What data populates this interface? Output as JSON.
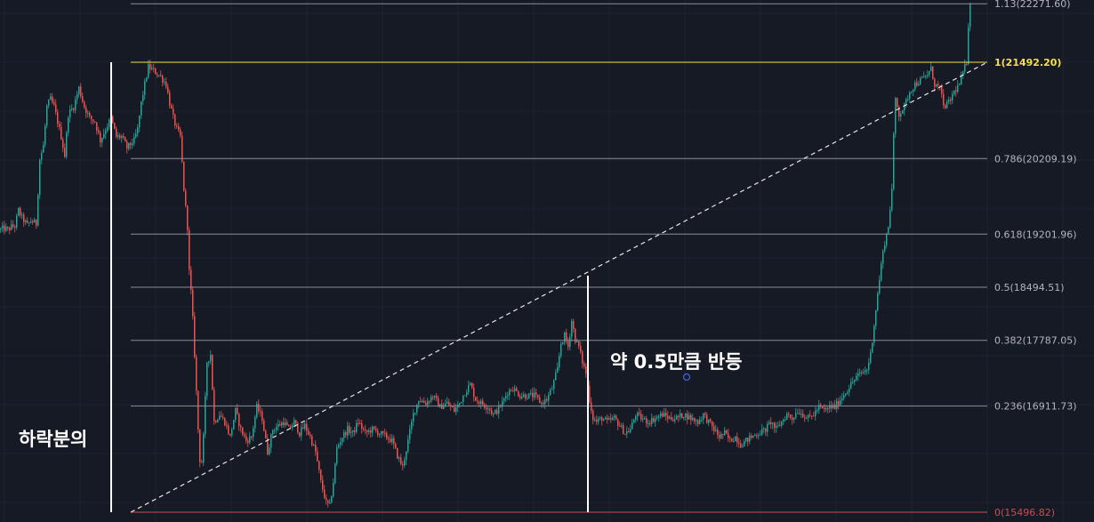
{
  "chart_data": {
    "type": "candlestick",
    "price_range": [
      15430,
      22320
    ],
    "fib_levels": [
      {
        "ratio": "0",
        "price": 15496.82,
        "label": "0(15496.82)",
        "color": "#d14a55"
      },
      {
        "ratio": "0.236",
        "price": 16911.73,
        "label": "0.236(16911.73)",
        "color": "#8a8e99"
      },
      {
        "ratio": "0.382",
        "price": 17787.05,
        "label": "0.382(17787.05)",
        "color": "#8a8e99"
      },
      {
        "ratio": "0.5",
        "price": 18494.51,
        "label": "0.5(18494.51)",
        "color": "#8a8e99"
      },
      {
        "ratio": "0.618",
        "price": 19201.96,
        "label": "0.618(19201.96)",
        "color": "#8a8e99"
      },
      {
        "ratio": "0.786",
        "price": 20209.19,
        "label": "0.786(20209.19)",
        "color": "#8a8e99"
      },
      {
        "ratio": "1",
        "price": 21492.2,
        "label": "1(21492.20)",
        "color": "#f5e04a"
      },
      {
        "ratio": "1.13",
        "price": 22271.6,
        "label": "1.13(22271.60)",
        "color": "#8a8e99"
      }
    ],
    "price_path": [
      [
        0,
        19260
      ],
      [
        3,
        19280
      ],
      [
        8,
        19260
      ],
      [
        12,
        19300
      ],
      [
        16,
        19310
      ],
      [
        20,
        19520
      ],
      [
        24,
        19420
      ],
      [
        30,
        19320
      ],
      [
        34,
        19380
      ],
      [
        40,
        19340
      ],
      [
        44,
        20200
      ],
      [
        48,
        20380
      ],
      [
        52,
        20900
      ],
      [
        56,
        21000
      ],
      [
        60,
        20900
      ],
      [
        64,
        20700
      ],
      [
        68,
        20500
      ],
      [
        72,
        20250
      ],
      [
        76,
        20800
      ],
      [
        82,
        20900
      ],
      [
        88,
        21150
      ],
      [
        94,
        20900
      ],
      [
        100,
        20750
      ],
      [
        106,
        20700
      ],
      [
        112,
        20450
      ],
      [
        118,
        20600
      ],
      [
        124,
        20750
      ],
      [
        130,
        20500
      ],
      [
        136,
        20500
      ],
      [
        142,
        20350
      ],
      [
        150,
        20450
      ],
      [
        154,
        20600
      ],
      [
        158,
        20950
      ],
      [
        162,
        21200
      ],
      [
        166,
        21430
      ],
      [
        172,
        21380
      ],
      [
        180,
        21300
      ],
      [
        186,
        21200
      ],
      [
        190,
        20950
      ],
      [
        194,
        20750
      ],
      [
        198,
        20600
      ],
      [
        202,
        20500
      ],
      [
        206,
        19800
      ],
      [
        210,
        19300
      ],
      [
        212,
        18700
      ],
      [
        215,
        18300
      ],
      [
        218,
        17600
      ],
      [
        222,
        16600
      ],
      [
        225,
        16000
      ],
      [
        228,
        16500
      ],
      [
        232,
        17500
      ],
      [
        236,
        17600
      ],
      [
        240,
        16700
      ],
      [
        246,
        16800
      ],
      [
        252,
        16700
      ],
      [
        258,
        16500
      ],
      [
        264,
        16850
      ],
      [
        270,
        16600
      ],
      [
        276,
        16450
      ],
      [
        282,
        16500
      ],
      [
        288,
        16900
      ],
      [
        294,
        16750
      ],
      [
        300,
        16300
      ],
      [
        306,
        16600
      ],
      [
        312,
        16650
      ],
      [
        318,
        16700
      ],
      [
        324,
        16600
      ],
      [
        330,
        16700
      ],
      [
        336,
        16550
      ],
      [
        342,
        16650
      ],
      [
        348,
        16500
      ],
      [
        354,
        16300
      ],
      [
        360,
        15900
      ],
      [
        366,
        15620
      ],
      [
        370,
        15580
      ],
      [
        374,
        15900
      ],
      [
        378,
        16350
      ],
      [
        384,
        16500
      ],
      [
        390,
        16600
      ],
      [
        396,
        16550
      ],
      [
        402,
        16700
      ],
      [
        410,
        16550
      ],
      [
        418,
        16600
      ],
      [
        426,
        16550
      ],
      [
        434,
        16500
      ],
      [
        440,
        16450
      ],
      [
        446,
        16250
      ],
      [
        452,
        16100
      ],
      [
        458,
        16450
      ],
      [
        464,
        16800
      ],
      [
        470,
        17000
      ],
      [
        478,
        16950
      ],
      [
        486,
        17050
      ],
      [
        494,
        16900
      ],
      [
        502,
        16950
      ],
      [
        510,
        16850
      ],
      [
        516,
        16950
      ],
      [
        522,
        17100
      ],
      [
        528,
        17200
      ],
      [
        534,
        17000
      ],
      [
        540,
        16950
      ],
      [
        548,
        16900
      ],
      [
        554,
        16800
      ],
      [
        558,
        16850
      ],
      [
        564,
        16950
      ],
      [
        570,
        17100
      ],
      [
        576,
        17150
      ],
      [
        584,
        17050
      ],
      [
        592,
        17050
      ],
      [
        600,
        17050
      ],
      [
        608,
        16950
      ],
      [
        614,
        17000
      ],
      [
        620,
        17150
      ],
      [
        626,
        17400
      ],
      [
        630,
        17750
      ],
      [
        634,
        17850
      ],
      [
        638,
        17700
      ],
      [
        642,
        18050
      ],
      [
        646,
        17800
      ],
      [
        650,
        17700
      ],
      [
        654,
        17500
      ],
      [
        658,
        17350
      ],
      [
        662,
        17000
      ],
      [
        666,
        16750
      ],
      [
        670,
        16700
      ],
      [
        676,
        16750
      ],
      [
        682,
        16700
      ],
      [
        690,
        16750
      ],
      [
        696,
        16650
      ],
      [
        702,
        16550
      ],
      [
        708,
        16600
      ],
      [
        714,
        16800
      ],
      [
        720,
        16750
      ],
      [
        728,
        16700
      ],
      [
        736,
        16750
      ],
      [
        744,
        16800
      ],
      [
        752,
        16750
      ],
      [
        760,
        16750
      ],
      [
        768,
        16800
      ],
      [
        776,
        16750
      ],
      [
        784,
        16700
      ],
      [
        790,
        16800
      ],
      [
        796,
        16700
      ],
      [
        802,
        16600
      ],
      [
        808,
        16500
      ],
      [
        814,
        16550
      ],
      [
        820,
        16450
      ],
      [
        826,
        16500
      ],
      [
        832,
        16400
      ],
      [
        838,
        16450
      ],
      [
        844,
        16500
      ],
      [
        852,
        16550
      ],
      [
        860,
        16600
      ],
      [
        866,
        16700
      ],
      [
        872,
        16600
      ],
      [
        878,
        16700
      ],
      [
        884,
        16800
      ],
      [
        890,
        16750
      ],
      [
        896,
        16850
      ],
      [
        902,
        16800
      ],
      [
        908,
        16750
      ],
      [
        914,
        16800
      ],
      [
        920,
        16900
      ],
      [
        926,
        16850
      ],
      [
        932,
        16900
      ],
      [
        938,
        16900
      ],
      [
        944,
        17000
      ],
      [
        950,
        17100
      ],
      [
        956,
        17200
      ],
      [
        962,
        17300
      ],
      [
        968,
        17350
      ],
      [
        974,
        17400
      ],
      [
        978,
        17600
      ],
      [
        982,
        18000
      ],
      [
        986,
        18400
      ],
      [
        990,
        18800
      ],
      [
        994,
        19100
      ],
      [
        998,
        19300
      ],
      [
        1002,
        19800
      ],
      [
        1004,
        20500
      ],
      [
        1006,
        21000
      ],
      [
        1010,
        20800
      ],
      [
        1016,
        20900
      ],
      [
        1022,
        21100
      ],
      [
        1028,
        21200
      ],
      [
        1034,
        21250
      ],
      [
        1040,
        21300
      ],
      [
        1046,
        21400
      ],
      [
        1050,
        21200
      ],
      [
        1056,
        21150
      ],
      [
        1060,
        20900
      ],
      [
        1066,
        20950
      ],
      [
        1072,
        21100
      ],
      [
        1078,
        21200
      ],
      [
        1082,
        21350
      ],
      [
        1086,
        21500
      ],
      [
        1088,
        22000
      ],
      [
        1090,
        22300
      ]
    ],
    "annotations": [
      {
        "text": "하락분의",
        "kind": "label"
      },
      {
        "text": "약 0.5만큼 반등",
        "kind": "label"
      }
    ]
  }
}
